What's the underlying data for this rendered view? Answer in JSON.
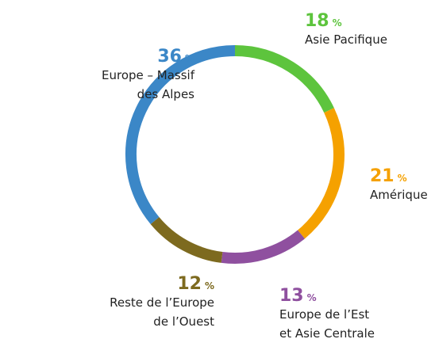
{
  "chart_data": {
    "type": "donut",
    "unit": "%",
    "categories": [
      [
        "Asie Pacifique"
      ],
      [
        "Amérique"
      ],
      [
        "Europe de l’Est",
        "et Asie Centrale"
      ],
      [
        "Reste de l’Europe",
        "de l’Ouest"
      ],
      [
        "Europe – Massif",
        "des Alpes"
      ]
    ],
    "values": [
      18,
      21,
      13,
      12,
      36
    ],
    "colors": [
      "#5dc43d",
      "#f5a100",
      "#8f509f",
      "#7d6a1f",
      "#3b87c7"
    ]
  }
}
